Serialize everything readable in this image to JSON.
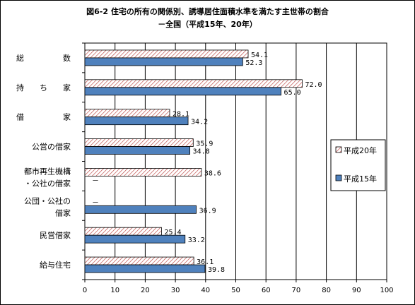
{
  "chart_data": {
    "type": "bar",
    "orientation": "horizontal",
    "title": "図6-2  住宅の所有の関係別、誘導居住面積水準を満たす主世帯の割合",
    "subtitle": "－全国（平成15年、20年）",
    "categories": [
      {
        "lines": [
          "総　　　　　数"
        ]
      },
      {
        "lines": [
          "持　　ち　　家"
        ]
      },
      {
        "lines": [
          "借　　　　　家"
        ]
      },
      {
        "lines": [
          "公営の借家"
        ]
      },
      {
        "lines": [
          "都市再生機構",
          "・公社の借家"
        ]
      },
      {
        "lines": [
          "公団・公社の",
          "借家"
        ]
      },
      {
        "lines": [
          "民営借家"
        ]
      },
      {
        "lines": [
          "給与住宅"
        ]
      }
    ],
    "series": [
      {
        "name": "平成20年",
        "pattern": "hatched",
        "values": [
          54.1,
          72.0,
          28.1,
          35.9,
          38.6,
          null,
          25.4,
          36.1
        ],
        "labels": [
          "54.1",
          "72.0",
          "28.1",
          "35.9",
          "38.6",
          "－",
          "25.4",
          "36.1"
        ]
      },
      {
        "name": "平成15年",
        "color": "#4f81bd",
        "values": [
          52.3,
          65.0,
          34.2,
          34.8,
          null,
          36.9,
          33.2,
          39.8
        ],
        "labels": [
          "52.3",
          "65.0",
          "34.2",
          "34.8",
          "－",
          "36.9",
          "33.2",
          "39.8"
        ]
      }
    ],
    "xlim": [
      0,
      100
    ],
    "xticks": [
      "0",
      "10",
      "20",
      "30",
      "40",
      "50",
      "60",
      "70",
      "80",
      "90",
      "100"
    ],
    "grid": true,
    "legend_position": "right"
  }
}
